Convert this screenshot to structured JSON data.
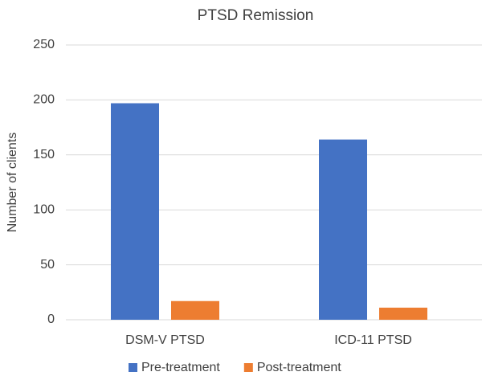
{
  "chart_data": {
    "type": "bar",
    "title": "PTSD Remission",
    "y_label": "Number of clients",
    "categories": [
      "DSM-V PTSD",
      "ICD-11 PTSD"
    ],
    "series": [
      {
        "name": "Pre-treatment",
        "color": "#4472c4",
        "values": [
          197,
          164
        ]
      },
      {
        "name": "Post-treatment",
        "color": "#ed7d31",
        "values": [
          17,
          11
        ]
      }
    ],
    "ylim": [
      0,
      250
    ],
    "yticks": [
      0,
      50,
      100,
      150,
      200,
      250
    ],
    "grid": true,
    "legend": "bottom"
  }
}
